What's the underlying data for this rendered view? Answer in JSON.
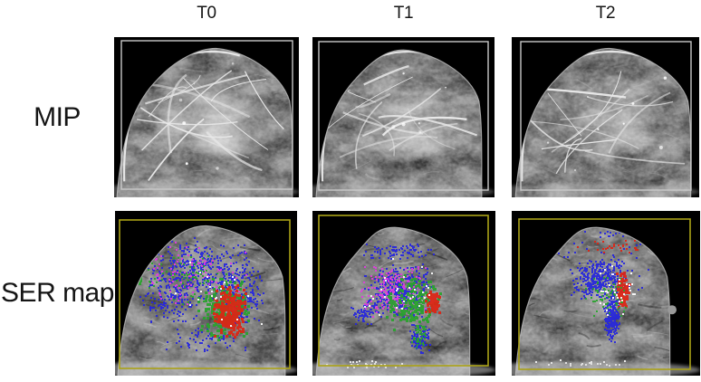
{
  "figure": {
    "column_headers": [
      "T0",
      "T1",
      "T2"
    ],
    "row_labels": [
      "MIP",
      "SER map"
    ],
    "colors": {
      "background": "#ffffff",
      "image_background": "#000000",
      "mip_frame": "#c9c9c9",
      "ser_frame": "#aba216",
      "ser_overlay_blue": "#2626dd",
      "ser_overlay_green": "#28a32d",
      "ser_overlay_red": "#de2413",
      "ser_overlay_magenta": "#df3cdf",
      "ser_overlay_white": "#ffffff"
    }
  }
}
